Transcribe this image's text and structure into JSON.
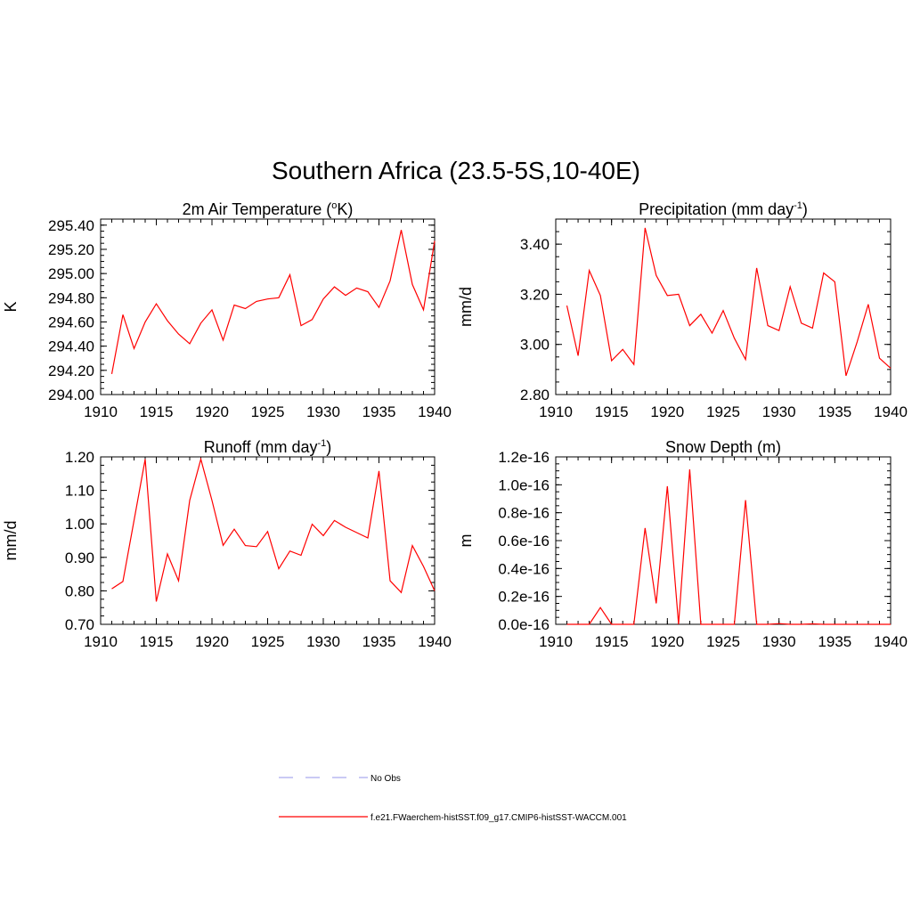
{
  "figure": {
    "title": "Southern Africa (23.5-5S,10-40E)"
  },
  "legend": {
    "items": [
      {
        "label": "No Obs",
        "color": "#aaaaee",
        "style": "dashed"
      },
      {
        "label": "f.e21.FWaerchem-histSST.f09_g17.CMIP6-histSST-WACCM.001",
        "color": "#ff0000",
        "style": "solid"
      }
    ]
  },
  "chart_data": [
    {
      "type": "line",
      "title": "2m Air Temperature",
      "title_suffix": "K)",
      "title_sup": "o",
      "title_prefix": "2m Air Temperature (",
      "ylabel": "K",
      "xlim": [
        1910,
        1940
      ],
      "ylim": [
        294.0,
        295.45
      ],
      "yticks": [
        294.0,
        294.2,
        294.4,
        294.6,
        294.8,
        295.0,
        295.2,
        295.4
      ],
      "ytick_labels": [
        "294.00",
        "294.20",
        "294.40",
        "294.60",
        "294.80",
        "295.00",
        "295.20",
        "295.40"
      ],
      "xticks": [
        1910,
        1915,
        1920,
        1925,
        1930,
        1935,
        1940
      ],
      "series": [
        {
          "color": "#ff0000",
          "x": [
            1911,
            1912,
            1913,
            1914,
            1915,
            1916,
            1917,
            1918,
            1919,
            1920,
            1921,
            1922,
            1923,
            1924,
            1925,
            1926,
            1927,
            1928,
            1929,
            1930,
            1931,
            1932,
            1933,
            1934,
            1935,
            1936,
            1937,
            1938,
            1939,
            1940
          ],
          "values": [
            294.17,
            294.66,
            294.38,
            294.6,
            294.75,
            294.61,
            294.5,
            294.42,
            294.59,
            294.7,
            294.45,
            294.74,
            294.71,
            294.77,
            294.79,
            294.8,
            294.99,
            294.57,
            294.62,
            294.79,
            294.89,
            294.82,
            294.88,
            294.85,
            294.72,
            294.94,
            295.36,
            294.91,
            294.7,
            295.27
          ]
        }
      ]
    },
    {
      "type": "line",
      "title": "Precipitation",
      "title_prefix": "Precipitation (mm day",
      "title_sup": "-1",
      "title_suffix": ")",
      "ylabel": "mm/d",
      "xlim": [
        1910,
        1940
      ],
      "ylim": [
        2.8,
        3.5
      ],
      "yticks": [
        2.8,
        3.0,
        3.2,
        3.4
      ],
      "ytick_labels": [
        "2.80",
        "3.00",
        "3.20",
        "3.40"
      ],
      "xticks": [
        1910,
        1915,
        1920,
        1925,
        1930,
        1935,
        1940
      ],
      "series": [
        {
          "color": "#ff0000",
          "x": [
            1911,
            1912,
            1913,
            1914,
            1915,
            1916,
            1917,
            1918,
            1919,
            1920,
            1921,
            1922,
            1923,
            1924,
            1925,
            1926,
            1927,
            1928,
            1929,
            1930,
            1931,
            1932,
            1933,
            1934,
            1935,
            1936,
            1937,
            1938,
            1939,
            1940
          ],
          "values": [
            3.155,
            2.955,
            3.295,
            3.195,
            2.935,
            2.98,
            2.92,
            3.465,
            3.275,
            3.195,
            3.2,
            3.075,
            3.12,
            3.045,
            3.135,
            3.025,
            2.94,
            3.305,
            3.075,
            3.055,
            3.23,
            3.085,
            3.065,
            3.285,
            3.25,
            2.875,
            3.01,
            3.16,
            2.945,
            2.905
          ]
        }
      ]
    },
    {
      "type": "line",
      "title": "Runoff",
      "title_prefix": "Runoff (mm day",
      "title_sup": "-1",
      "title_suffix": ")",
      "ylabel": "mm/d",
      "xlim": [
        1910,
        1940
      ],
      "ylim": [
        0.7,
        1.2
      ],
      "yticks": [
        0.7,
        0.8,
        0.9,
        1.0,
        1.1,
        1.2
      ],
      "ytick_labels": [
        "0.70",
        "0.80",
        "0.90",
        "1.00",
        "1.10",
        "1.20"
      ],
      "xticks": [
        1910,
        1915,
        1920,
        1925,
        1930,
        1935,
        1940
      ],
      "series": [
        {
          "color": "#ff0000",
          "x": [
            1911,
            1912,
            1913,
            1914,
            1915,
            1916,
            1917,
            1918,
            1919,
            1920,
            1921,
            1922,
            1923,
            1924,
            1925,
            1926,
            1927,
            1928,
            1929,
            1930,
            1931,
            1932,
            1933,
            1934,
            1935,
            1936,
            1937,
            1938,
            1939,
            1940
          ],
          "values": [
            0.806,
            0.828,
            1.01,
            1.193,
            0.768,
            0.91,
            0.83,
            1.07,
            1.193,
            1.07,
            0.936,
            0.984,
            0.935,
            0.932,
            0.977,
            0.866,
            0.919,
            0.906,
            0.999,
            0.965,
            1.01,
            0.99,
            0.974,
            0.958,
            1.158,
            0.83,
            0.795,
            0.935,
            0.873,
            0.8
          ]
        }
      ]
    },
    {
      "type": "line",
      "title": "Snow Depth (m)",
      "title_prefix": "Snow Depth (m)",
      "title_sup": "",
      "title_suffix": "",
      "ylabel": "m",
      "xlim": [
        1910,
        1940
      ],
      "ylim": [
        0.0,
        1.2
      ],
      "yticks": [
        0.0,
        0.2,
        0.4,
        0.6,
        0.8,
        1.0,
        1.2
      ],
      "ytick_labels": [
        "0.0e-16",
        "0.2e-16",
        "0.4e-16",
        "0.6e-16",
        "0.8e-16",
        "1.0e-16",
        "1.2e-16"
      ],
      "xticks": [
        1910,
        1915,
        1920,
        1925,
        1930,
        1935,
        1940
      ],
      "series": [
        {
          "color": "#ff0000",
          "x": [
            1911,
            1912,
            1913,
            1914,
            1915,
            1916,
            1917,
            1918,
            1919,
            1920,
            1921,
            1922,
            1923,
            1924,
            1925,
            1926,
            1927,
            1928,
            1929,
            1930,
            1931,
            1932,
            1933,
            1934,
            1935,
            1936,
            1937,
            1938,
            1939,
            1940
          ],
          "values": [
            0.0,
            0.0,
            0.0,
            0.12,
            0.0,
            0.0,
            0.0,
            0.69,
            0.15,
            0.99,
            0.0,
            1.11,
            0.0,
            0.0,
            0.0,
            0.0,
            0.89,
            0.0,
            0.0,
            0.005,
            0.0,
            0.0,
            0.003,
            0.0,
            0.0,
            0.0,
            0.0,
            0.0,
            0.0,
            0.0
          ]
        }
      ]
    }
  ]
}
